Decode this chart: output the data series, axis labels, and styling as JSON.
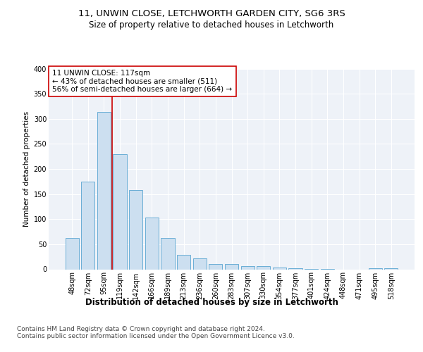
{
  "title1": "11, UNWIN CLOSE, LETCHWORTH GARDEN CITY, SG6 3RS",
  "title2": "Size of property relative to detached houses in Letchworth",
  "xlabel": "Distribution of detached houses by size in Letchworth",
  "ylabel": "Number of detached properties",
  "categories": [
    "48sqm",
    "72sqm",
    "95sqm",
    "119sqm",
    "142sqm",
    "166sqm",
    "189sqm",
    "213sqm",
    "236sqm",
    "260sqm",
    "283sqm",
    "307sqm",
    "330sqm",
    "354sqm",
    "377sqm",
    "401sqm",
    "424sqm",
    "448sqm",
    "471sqm",
    "495sqm",
    "518sqm"
  ],
  "values": [
    63,
    175,
    313,
    230,
    158,
    103,
    62,
    29,
    22,
    10,
    10,
    7,
    6,
    4,
    2,
    1,
    1,
    0,
    0,
    2,
    2
  ],
  "bar_color": "#ccdff0",
  "bar_edge_color": "#6aaed6",
  "vline_color": "#cc0000",
  "annotation_text": "11 UNWIN CLOSE: 117sqm\n← 43% of detached houses are smaller (511)\n56% of semi-detached houses are larger (664) →",
  "annotation_box_color": "#ffffff",
  "annotation_box_edge": "#cc0000",
  "ylim": [
    0,
    400
  ],
  "yticks": [
    0,
    50,
    100,
    150,
    200,
    250,
    300,
    350,
    400
  ],
  "background_color": "#eef2f8",
  "grid_color": "#ffffff",
  "footnote": "Contains HM Land Registry data © Crown copyright and database right 2024.\nContains public sector information licensed under the Open Government Licence v3.0.",
  "title1_fontsize": 9.5,
  "title2_fontsize": 8.5,
  "xlabel_fontsize": 8.5,
  "ylabel_fontsize": 7.5,
  "annotation_fontsize": 7.5,
  "tick_fontsize": 7,
  "footnote_fontsize": 6.5
}
